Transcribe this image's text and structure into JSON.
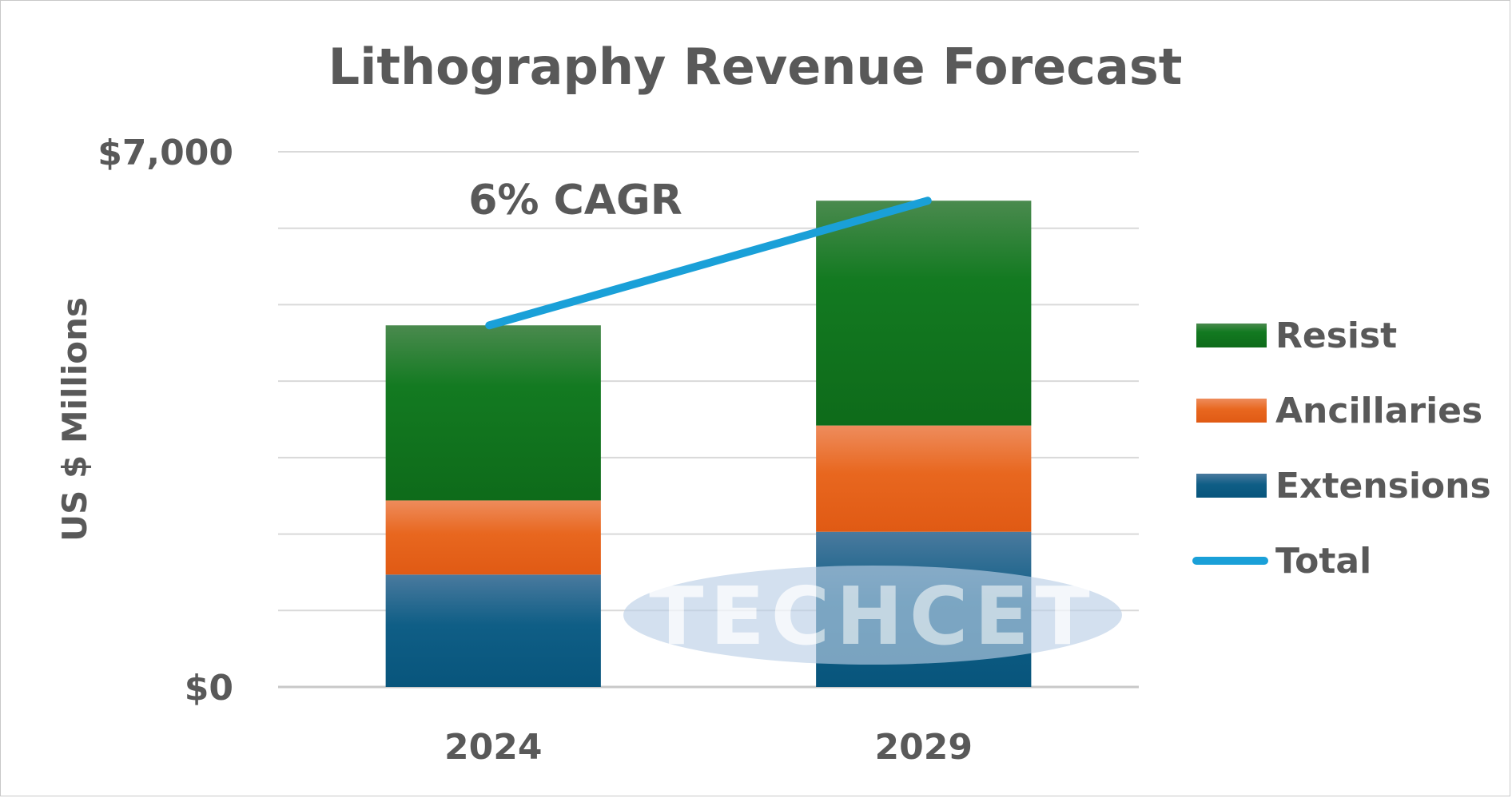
{
  "chart_data": {
    "type": "bar",
    "stacked": true,
    "title": "Lithography Revenue Forecast",
    "ylabel": "US $ Millions",
    "xlabel": "",
    "categories": [
      "2024",
      "2029"
    ],
    "ylim": [
      0,
      7000
    ],
    "y_tick_labels": [
      "$0",
      "$7,000"
    ],
    "y_tick_values": [
      0,
      7000
    ],
    "gridlines": true,
    "grid_step": 1000,
    "series": [
      {
        "name": "Extensions",
        "values": [
          1470,
          2030
        ],
        "color": "#0b5a82"
      },
      {
        "name": "Ancillaries",
        "values": [
          970,
          1390
        ],
        "color": "#e8671f"
      },
      {
        "name": "Resist",
        "values": [
          2290,
          2940
        ],
        "color": "#127a20"
      }
    ],
    "line_series": {
      "name": "Total",
      "values": [
        4730,
        6360
      ],
      "color": "#1aa0d8"
    },
    "annotations": [
      {
        "text": "6% CAGR"
      }
    ],
    "legend": {
      "position": "right",
      "items": [
        "Resist",
        "Ancillaries",
        "Extensions",
        "Total"
      ]
    },
    "watermark": "TECHCET"
  }
}
